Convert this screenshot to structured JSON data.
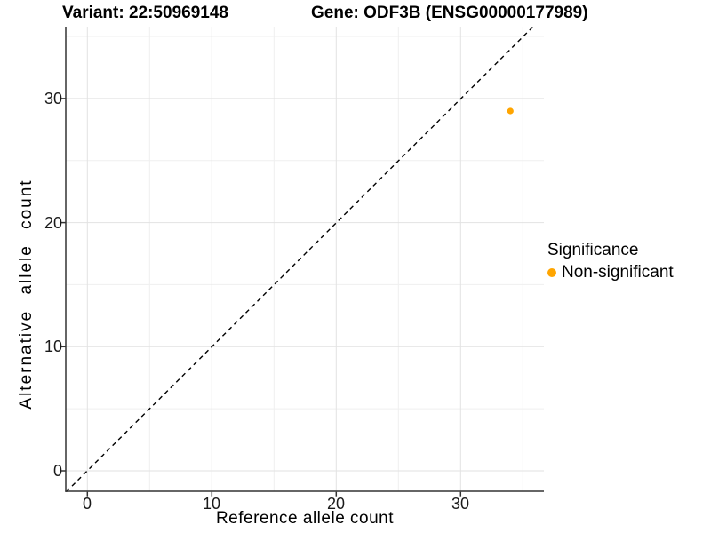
{
  "titles": {
    "variant": "Variant: 22:50969148",
    "gene": "Gene: ODF3B (ENSG00000177989)"
  },
  "chart_data": {
    "type": "scatter",
    "title": "Variant: 22:50969148    Gene: ODF3B (ENSG00000177989)",
    "xlabel": "Reference allele count",
    "ylabel": "Alternative allele count",
    "xlim": [
      -1.7,
      35.9
    ],
    "ylim": [
      -1.7,
      35.9
    ],
    "x_tick_labels": [
      "0",
      "10",
      "20",
      "30"
    ],
    "y_tick_labels": [
      "0",
      "10",
      "20",
      "30"
    ],
    "grid": "major #e2e2e2 and minor #efefef on white panel",
    "reference_line": {
      "kind": "identity y=x",
      "style": "dashed",
      "color": "#000000"
    },
    "series": [
      {
        "name": "Non-significant",
        "color": "#FFA500",
        "points": [
          {
            "x": 34,
            "y": 29
          }
        ]
      }
    ],
    "legend": {
      "title": "Significance",
      "position": "right",
      "entries": [
        {
          "label": "Non-significant",
          "color": "#FFA500"
        }
      ]
    }
  },
  "axes": {
    "x": {
      "label": "Reference allele count",
      "ticks": [
        "0",
        "10",
        "20",
        "30"
      ]
    },
    "y": {
      "label": "Alternative allele count",
      "ticks": [
        "0",
        "10",
        "20",
        "30"
      ]
    }
  },
  "legend": {
    "title": "Significance",
    "entry_label": "Non-significant",
    "entry_color": "#FFA500"
  },
  "colors": {
    "point": "#FFA500",
    "axis_line": "#333333",
    "grid_major": "#e2e2e2",
    "grid_minor": "#efefef",
    "dashed_line": "#000000"
  }
}
